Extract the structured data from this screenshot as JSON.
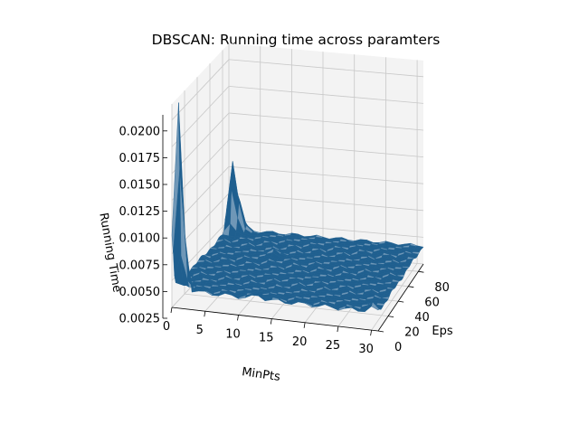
{
  "chart_data": {
    "type": "surface3d",
    "title": "DBSCAN: Running time across paramters",
    "xlabel": "MinPts",
    "ylabel": "Eps",
    "zlabel": "Running Time",
    "x_ticks": [
      "0",
      "5",
      "10",
      "15",
      "20",
      "25",
      "30"
    ],
    "y_ticks": [
      "0",
      "20",
      "40",
      "60",
      "80"
    ],
    "z_ticks": [
      "0.0025",
      "0.0050",
      "0.0075",
      "0.0100",
      "0.0125",
      "0.0150",
      "0.0175",
      "0.0200"
    ],
    "xlim": [
      0,
      31
    ],
    "ylim": [
      0,
      90
    ],
    "zlim": [
      0.0025,
      0.0215
    ],
    "grid": true,
    "baseline_running_time": 0.0042,
    "peaks": [
      {
        "minpts": 1,
        "eps": 0,
        "running_time": 0.0215
      },
      {
        "minpts": 1,
        "eps": 86,
        "running_time": 0.0105
      },
      {
        "minpts": 2,
        "eps": 88,
        "running_time": 0.0058
      },
      {
        "minpts": 10,
        "eps": 60,
        "running_time": 0.0048
      },
      {
        "minpts": 13,
        "eps": 2,
        "running_time": 0.0047
      },
      {
        "minpts": 30,
        "eps": 2,
        "running_time": 0.0048
      }
    ]
  },
  "colors": {
    "surface": "#1f5f8f",
    "surface_light": "#6f97b7",
    "pane": "#f3f3f3",
    "grid": "#c8c8c8",
    "axis": "#000000"
  }
}
